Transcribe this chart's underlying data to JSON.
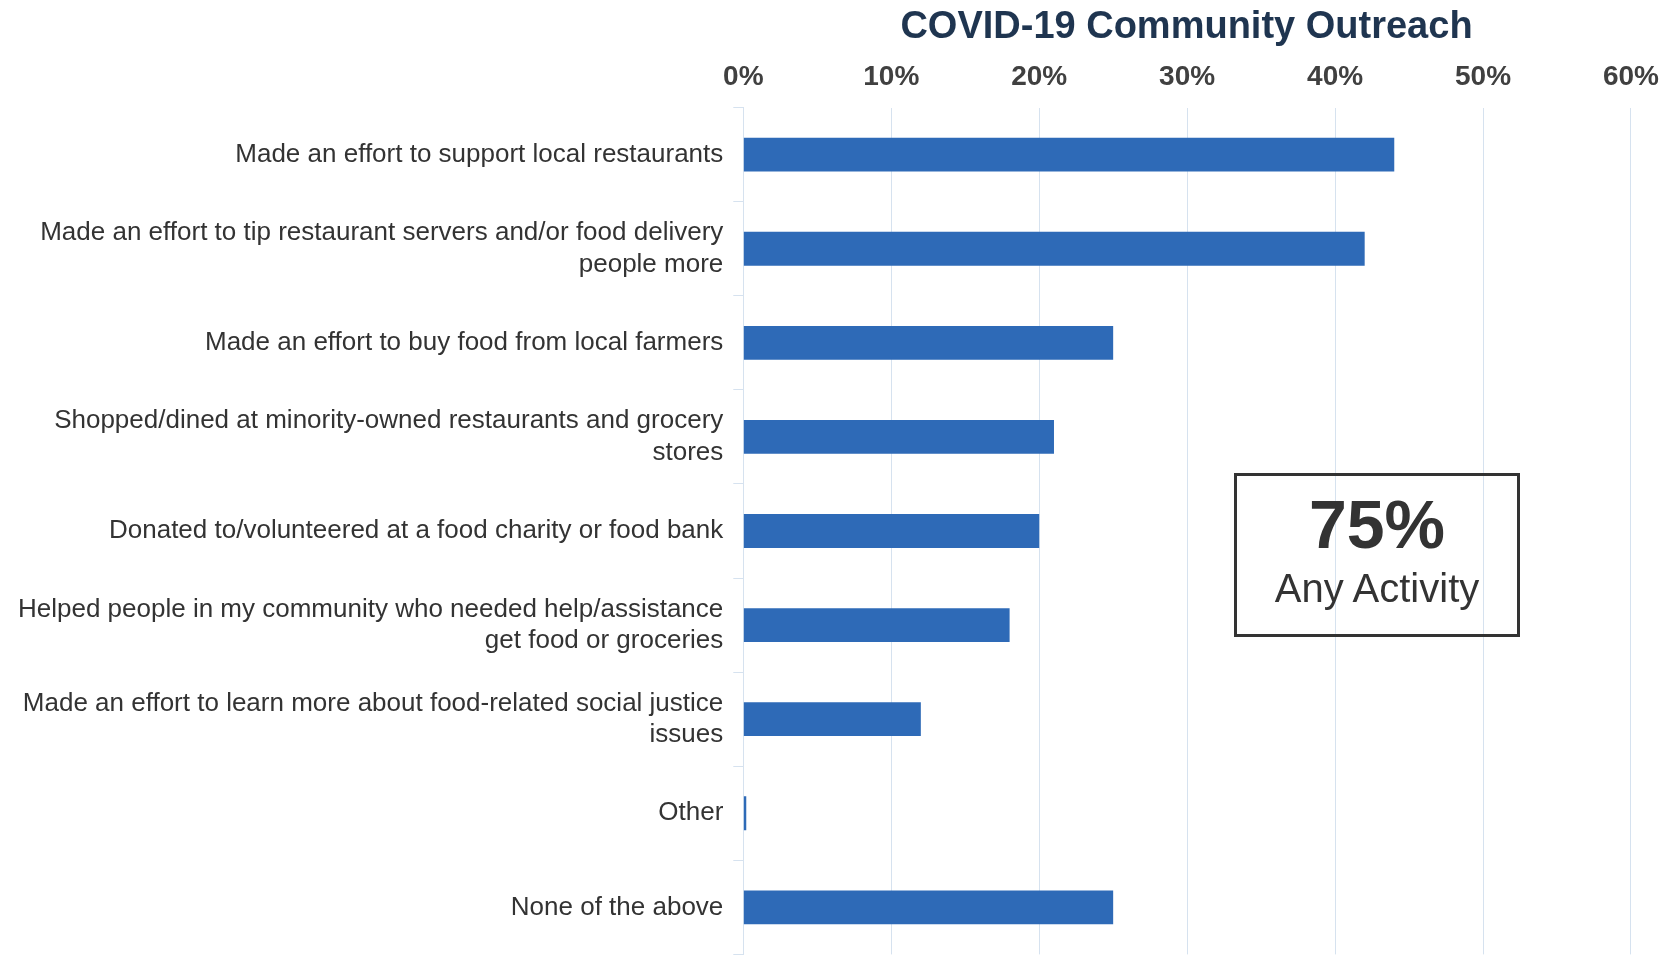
{
  "chart_data": {
    "type": "bar",
    "orientation": "horizontal",
    "title": "COVID-19 Community Outreach",
    "categories": [
      "Made an effort to support local restaurants",
      "Made an effort to tip restaurant servers and/or food delivery people more",
      "Made an effort to buy food from local farmers",
      "Shopped/dined at minority-owned restaurants and grocery stores",
      "Donated to/volunteered at a food charity or food bank",
      "Helped people in my community who needed help/assistance get food or groceries",
      "Made an effort to learn more about food-related social justice issues",
      "Other",
      "None of the above"
    ],
    "values": [
      44,
      42,
      25,
      21,
      20,
      18,
      12,
      0.2,
      25
    ],
    "color": "#2e6ab7",
    "xlim": [
      0,
      60
    ],
    "xticks": [
      {
        "value": 0,
        "label": "0%"
      },
      {
        "value": 10,
        "label": "10%"
      },
      {
        "value": 20,
        "label": "20%"
      },
      {
        "value": 30,
        "label": "30%"
      },
      {
        "value": 40,
        "label": "40%"
      },
      {
        "value": 50,
        "label": "50%"
      },
      {
        "value": 60,
        "label": "60%"
      }
    ],
    "grid": "x",
    "annotations": [
      "75%",
      "Any Activity"
    ]
  }
}
